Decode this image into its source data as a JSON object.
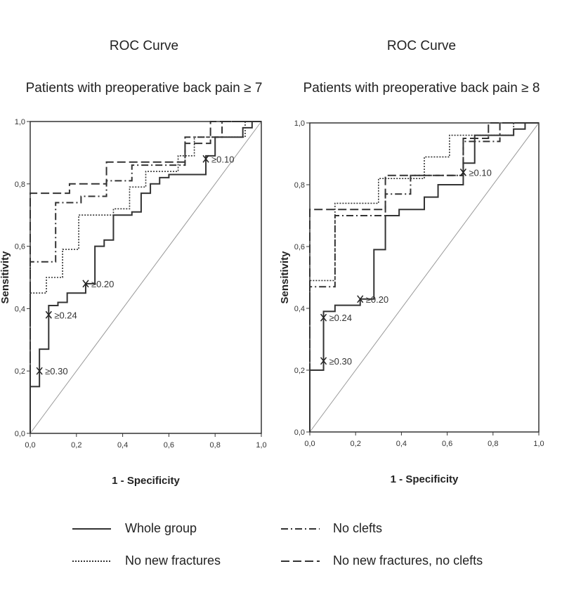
{
  "chart_data": [
    {
      "type": "line",
      "title": "ROC Curve",
      "subtitle": "Patients with preoperative back pain ≥ 7",
      "xlabel": "1 - Specificity",
      "ylabel": "Sensitivity",
      "xlim": [
        0,
        1
      ],
      "ylim": [
        0,
        1
      ],
      "ticks": [
        "0,0",
        "0,2",
        "0,4",
        "0,6",
        "0,8",
        "1,0"
      ],
      "series": [
        {
          "name": "Whole group",
          "style": "solid",
          "points": [
            [
              0,
              0
            ],
            [
              0,
              0.15
            ],
            [
              0.04,
              0.15
            ],
            [
              0.04,
              0.27
            ],
            [
              0.08,
              0.27
            ],
            [
              0.08,
              0.41
            ],
            [
              0.12,
              0.41
            ],
            [
              0.12,
              0.42
            ],
            [
              0.16,
              0.42
            ],
            [
              0.16,
              0.45
            ],
            [
              0.24,
              0.45
            ],
            [
              0.24,
              0.48
            ],
            [
              0.28,
              0.48
            ],
            [
              0.28,
              0.6
            ],
            [
              0.32,
              0.6
            ],
            [
              0.32,
              0.62
            ],
            [
              0.36,
              0.62
            ],
            [
              0.36,
              0.7
            ],
            [
              0.44,
              0.7
            ],
            [
              0.44,
              0.71
            ],
            [
              0.48,
              0.71
            ],
            [
              0.48,
              0.77
            ],
            [
              0.52,
              0.77
            ],
            [
              0.52,
              0.8
            ],
            [
              0.56,
              0.8
            ],
            [
              0.56,
              0.82
            ],
            [
              0.6,
              0.82
            ],
            [
              0.6,
              0.83
            ],
            [
              0.76,
              0.83
            ],
            [
              0.76,
              0.89
            ],
            [
              0.8,
              0.89
            ],
            [
              0.8,
              0.95
            ],
            [
              0.92,
              0.95
            ],
            [
              0.92,
              0.98
            ],
            [
              0.96,
              0.98
            ],
            [
              0.96,
              1
            ],
            [
              1,
              1
            ]
          ]
        },
        {
          "name": "No new fractures",
          "style": "dotted",
          "points": [
            [
              0,
              0
            ],
            [
              0,
              0.45
            ],
            [
              0.07,
              0.45
            ],
            [
              0.07,
              0.5
            ],
            [
              0.14,
              0.5
            ],
            [
              0.14,
              0.59
            ],
            [
              0.21,
              0.59
            ],
            [
              0.21,
              0.7
            ],
            [
              0.36,
              0.7
            ],
            [
              0.36,
              0.72
            ],
            [
              0.43,
              0.72
            ],
            [
              0.43,
              0.79
            ],
            [
              0.5,
              0.79
            ],
            [
              0.5,
              0.84
            ],
            [
              0.64,
              0.84
            ],
            [
              0.64,
              0.89
            ],
            [
              0.71,
              0.89
            ],
            [
              0.71,
              0.95
            ],
            [
              0.93,
              0.95
            ],
            [
              0.93,
              1
            ],
            [
              1,
              1
            ]
          ]
        },
        {
          "name": "No clefts",
          "style": "dashdot",
          "points": [
            [
              0,
              0
            ],
            [
              0,
              0.55
            ],
            [
              0.11,
              0.55
            ],
            [
              0.11,
              0.74
            ],
            [
              0.22,
              0.74
            ],
            [
              0.22,
              0.76
            ],
            [
              0.33,
              0.76
            ],
            [
              0.33,
              0.81
            ],
            [
              0.44,
              0.81
            ],
            [
              0.44,
              0.86
            ],
            [
              0.67,
              0.86
            ],
            [
              0.67,
              0.95
            ],
            [
              0.83,
              0.95
            ],
            [
              0.83,
              1
            ],
            [
              1,
              1
            ]
          ]
        },
        {
          "name": "No new fractures, no clefts",
          "style": "dashed",
          "points": [
            [
              0,
              0
            ],
            [
              0,
              0.77
            ],
            [
              0.17,
              0.77
            ],
            [
              0.17,
              0.8
            ],
            [
              0.33,
              0.8
            ],
            [
              0.33,
              0.87
            ],
            [
              0.67,
              0.87
            ],
            [
              0.67,
              0.93
            ],
            [
              0.78,
              0.93
            ],
            [
              0.78,
              1
            ],
            [
              1,
              1
            ]
          ]
        }
      ],
      "annotations": [
        {
          "text": "≥0.30",
          "x": 0.04,
          "y": 0.2
        },
        {
          "text": "≥0.24",
          "x": 0.08,
          "y": 0.38
        },
        {
          "text": "≥0.20",
          "x": 0.24,
          "y": 0.48
        },
        {
          "text": "≥0.10",
          "x": 0.76,
          "y": 0.88
        }
      ]
    },
    {
      "type": "line",
      "title": "ROC Curve",
      "subtitle": "Patients with preoperative back pain ≥ 8",
      "xlabel": "1 - Specificity",
      "ylabel": "Sensitivity",
      "xlim": [
        0,
        1
      ],
      "ylim": [
        0,
        1
      ],
      "ticks": [
        "0,0",
        "0,2",
        "0,4",
        "0,6",
        "0,8",
        "1,0"
      ],
      "series": [
        {
          "name": "Whole group",
          "style": "solid",
          "points": [
            [
              0,
              0
            ],
            [
              0,
              0.2
            ],
            [
              0.06,
              0.2
            ],
            [
              0.06,
              0.39
            ],
            [
              0.11,
              0.39
            ],
            [
              0.11,
              0.41
            ],
            [
              0.22,
              0.41
            ],
            [
              0.22,
              0.43
            ],
            [
              0.28,
              0.43
            ],
            [
              0.28,
              0.59
            ],
            [
              0.33,
              0.59
            ],
            [
              0.33,
              0.7
            ],
            [
              0.39,
              0.7
            ],
            [
              0.39,
              0.72
            ],
            [
              0.5,
              0.72
            ],
            [
              0.5,
              0.76
            ],
            [
              0.56,
              0.76
            ],
            [
              0.56,
              0.8
            ],
            [
              0.67,
              0.8
            ],
            [
              0.67,
              0.87
            ],
            [
              0.72,
              0.87
            ],
            [
              0.72,
              0.96
            ],
            [
              0.89,
              0.96
            ],
            [
              0.89,
              0.98
            ],
            [
              0.94,
              0.98
            ],
            [
              0.94,
              1
            ],
            [
              1,
              1
            ]
          ]
        },
        {
          "name": "No new fractures",
          "style": "dotted",
          "points": [
            [
              0,
              0
            ],
            [
              0,
              0.49
            ],
            [
              0.11,
              0.49
            ],
            [
              0.11,
              0.74
            ],
            [
              0.3,
              0.74
            ],
            [
              0.3,
              0.82
            ],
            [
              0.5,
              0.82
            ],
            [
              0.5,
              0.89
            ],
            [
              0.61,
              0.89
            ],
            [
              0.61,
              0.96
            ],
            [
              0.89,
              0.96
            ],
            [
              0.89,
              1
            ],
            [
              1,
              1
            ]
          ]
        },
        {
          "name": "No clefts",
          "style": "dashdot",
          "points": [
            [
              0,
              0
            ],
            [
              0,
              0.47
            ],
            [
              0.11,
              0.47
            ],
            [
              0.11,
              0.7
            ],
            [
              0.33,
              0.7
            ],
            [
              0.33,
              0.77
            ],
            [
              0.44,
              0.77
            ],
            [
              0.44,
              0.83
            ],
            [
              0.67,
              0.83
            ],
            [
              0.67,
              0.94
            ],
            [
              0.83,
              0.94
            ],
            [
              0.83,
              1
            ],
            [
              1,
              1
            ]
          ]
        },
        {
          "name": "No new fractures, no clefts",
          "style": "dashed",
          "points": [
            [
              0,
              0
            ],
            [
              0,
              0.72
            ],
            [
              0.33,
              0.72
            ],
            [
              0.33,
              0.83
            ],
            [
              0.67,
              0.83
            ],
            [
              0.67,
              0.95
            ],
            [
              0.78,
              0.95
            ],
            [
              0.78,
              1
            ],
            [
              1,
              1
            ]
          ]
        }
      ],
      "annotations": [
        {
          "text": "≥0.30",
          "x": 0.06,
          "y": 0.23
        },
        {
          "text": "≥0.24",
          "x": 0.06,
          "y": 0.37
        },
        {
          "text": "≥0.20",
          "x": 0.22,
          "y": 0.43
        },
        {
          "text": "≥0.10",
          "x": 0.67,
          "y": 0.84
        }
      ]
    }
  ],
  "legend": [
    {
      "label": "Whole group",
      "style": "solid"
    },
    {
      "label": "No clefts",
      "style": "dashdot"
    },
    {
      "label": "No new fractures",
      "style": "dotted"
    },
    {
      "label": "No new fractures, no clefts",
      "style": "dashed"
    }
  ]
}
